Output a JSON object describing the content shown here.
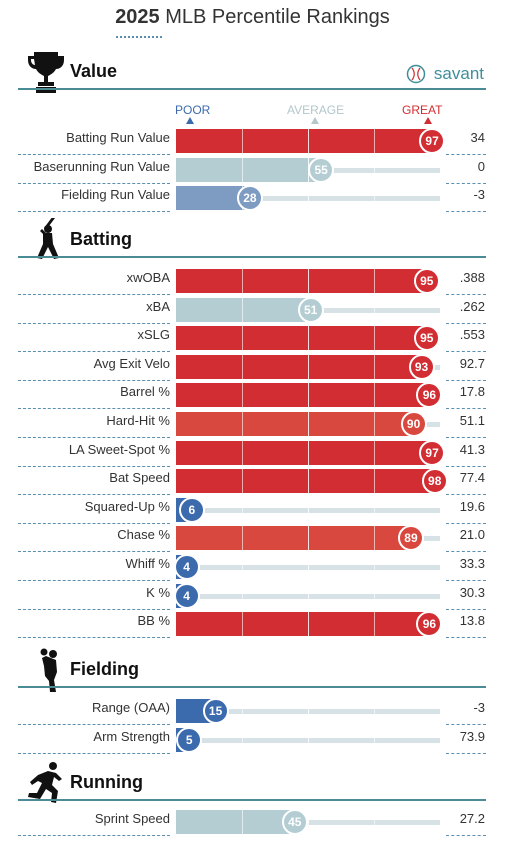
{
  "title": {
    "year": "2025",
    "rest": "MLB Percentile Rankings"
  },
  "brand": "savant",
  "scale": {
    "poor": "POOR",
    "average": "AVERAGE",
    "great": "GREAT"
  },
  "colors": {
    "great": "#d22d32",
    "good": "#d9483e",
    "neutral": "#b3cdd3",
    "below": "#7e9bc2",
    "poor": "#3b6aad",
    "rule": "#4a8b95"
  },
  "sections": [
    {
      "title": "Value",
      "icon": "trophy-icon"
    },
    {
      "title": "Batting",
      "icon": "batter-icon"
    },
    {
      "title": "Fielding",
      "icon": "fielder-icon"
    },
    {
      "title": "Running",
      "icon": "runner-icon"
    }
  ],
  "chart_data": {
    "type": "bar",
    "title": "2025 MLB Percentile Rankings",
    "xlim": [
      0,
      100
    ],
    "groups": [
      {
        "name": "Value",
        "metrics": [
          {
            "label": "Batting Run Value",
            "percentile": 97,
            "value": "34"
          },
          {
            "label": "Baserunning Run Value",
            "percentile": 55,
            "value": "0"
          },
          {
            "label": "Fielding Run Value",
            "percentile": 28,
            "value": "-3"
          }
        ]
      },
      {
        "name": "Batting",
        "metrics": [
          {
            "label": "xwOBA",
            "percentile": 95,
            "value": ".388"
          },
          {
            "label": "xBA",
            "percentile": 51,
            "value": ".262"
          },
          {
            "label": "xSLG",
            "percentile": 95,
            "value": ".553"
          },
          {
            "label": "Avg Exit Velo",
            "percentile": 93,
            "value": "92.7"
          },
          {
            "label": "Barrel %",
            "percentile": 96,
            "value": "17.8"
          },
          {
            "label": "Hard-Hit %",
            "percentile": 90,
            "value": "51.1"
          },
          {
            "label": "LA Sweet-Spot %",
            "percentile": 97,
            "value": "41.3"
          },
          {
            "label": "Bat Speed",
            "percentile": 98,
            "value": "77.4"
          },
          {
            "label": "Squared-Up %",
            "percentile": 6,
            "value": "19.6"
          },
          {
            "label": "Chase %",
            "percentile": 89,
            "value": "21.0"
          },
          {
            "label": "Whiff %",
            "percentile": 4,
            "value": "33.3"
          },
          {
            "label": "K %",
            "percentile": 4,
            "value": "30.3"
          },
          {
            "label": "BB %",
            "percentile": 96,
            "value": "13.8"
          }
        ]
      },
      {
        "name": "Fielding",
        "metrics": [
          {
            "label": "Range (OAA)",
            "percentile": 15,
            "value": "-3"
          },
          {
            "label": "Arm Strength",
            "percentile": 5,
            "value": "73.9"
          }
        ]
      },
      {
        "name": "Running",
        "metrics": [
          {
            "label": "Sprint Speed",
            "percentile": 45,
            "value": "27.2"
          }
        ]
      }
    ]
  }
}
